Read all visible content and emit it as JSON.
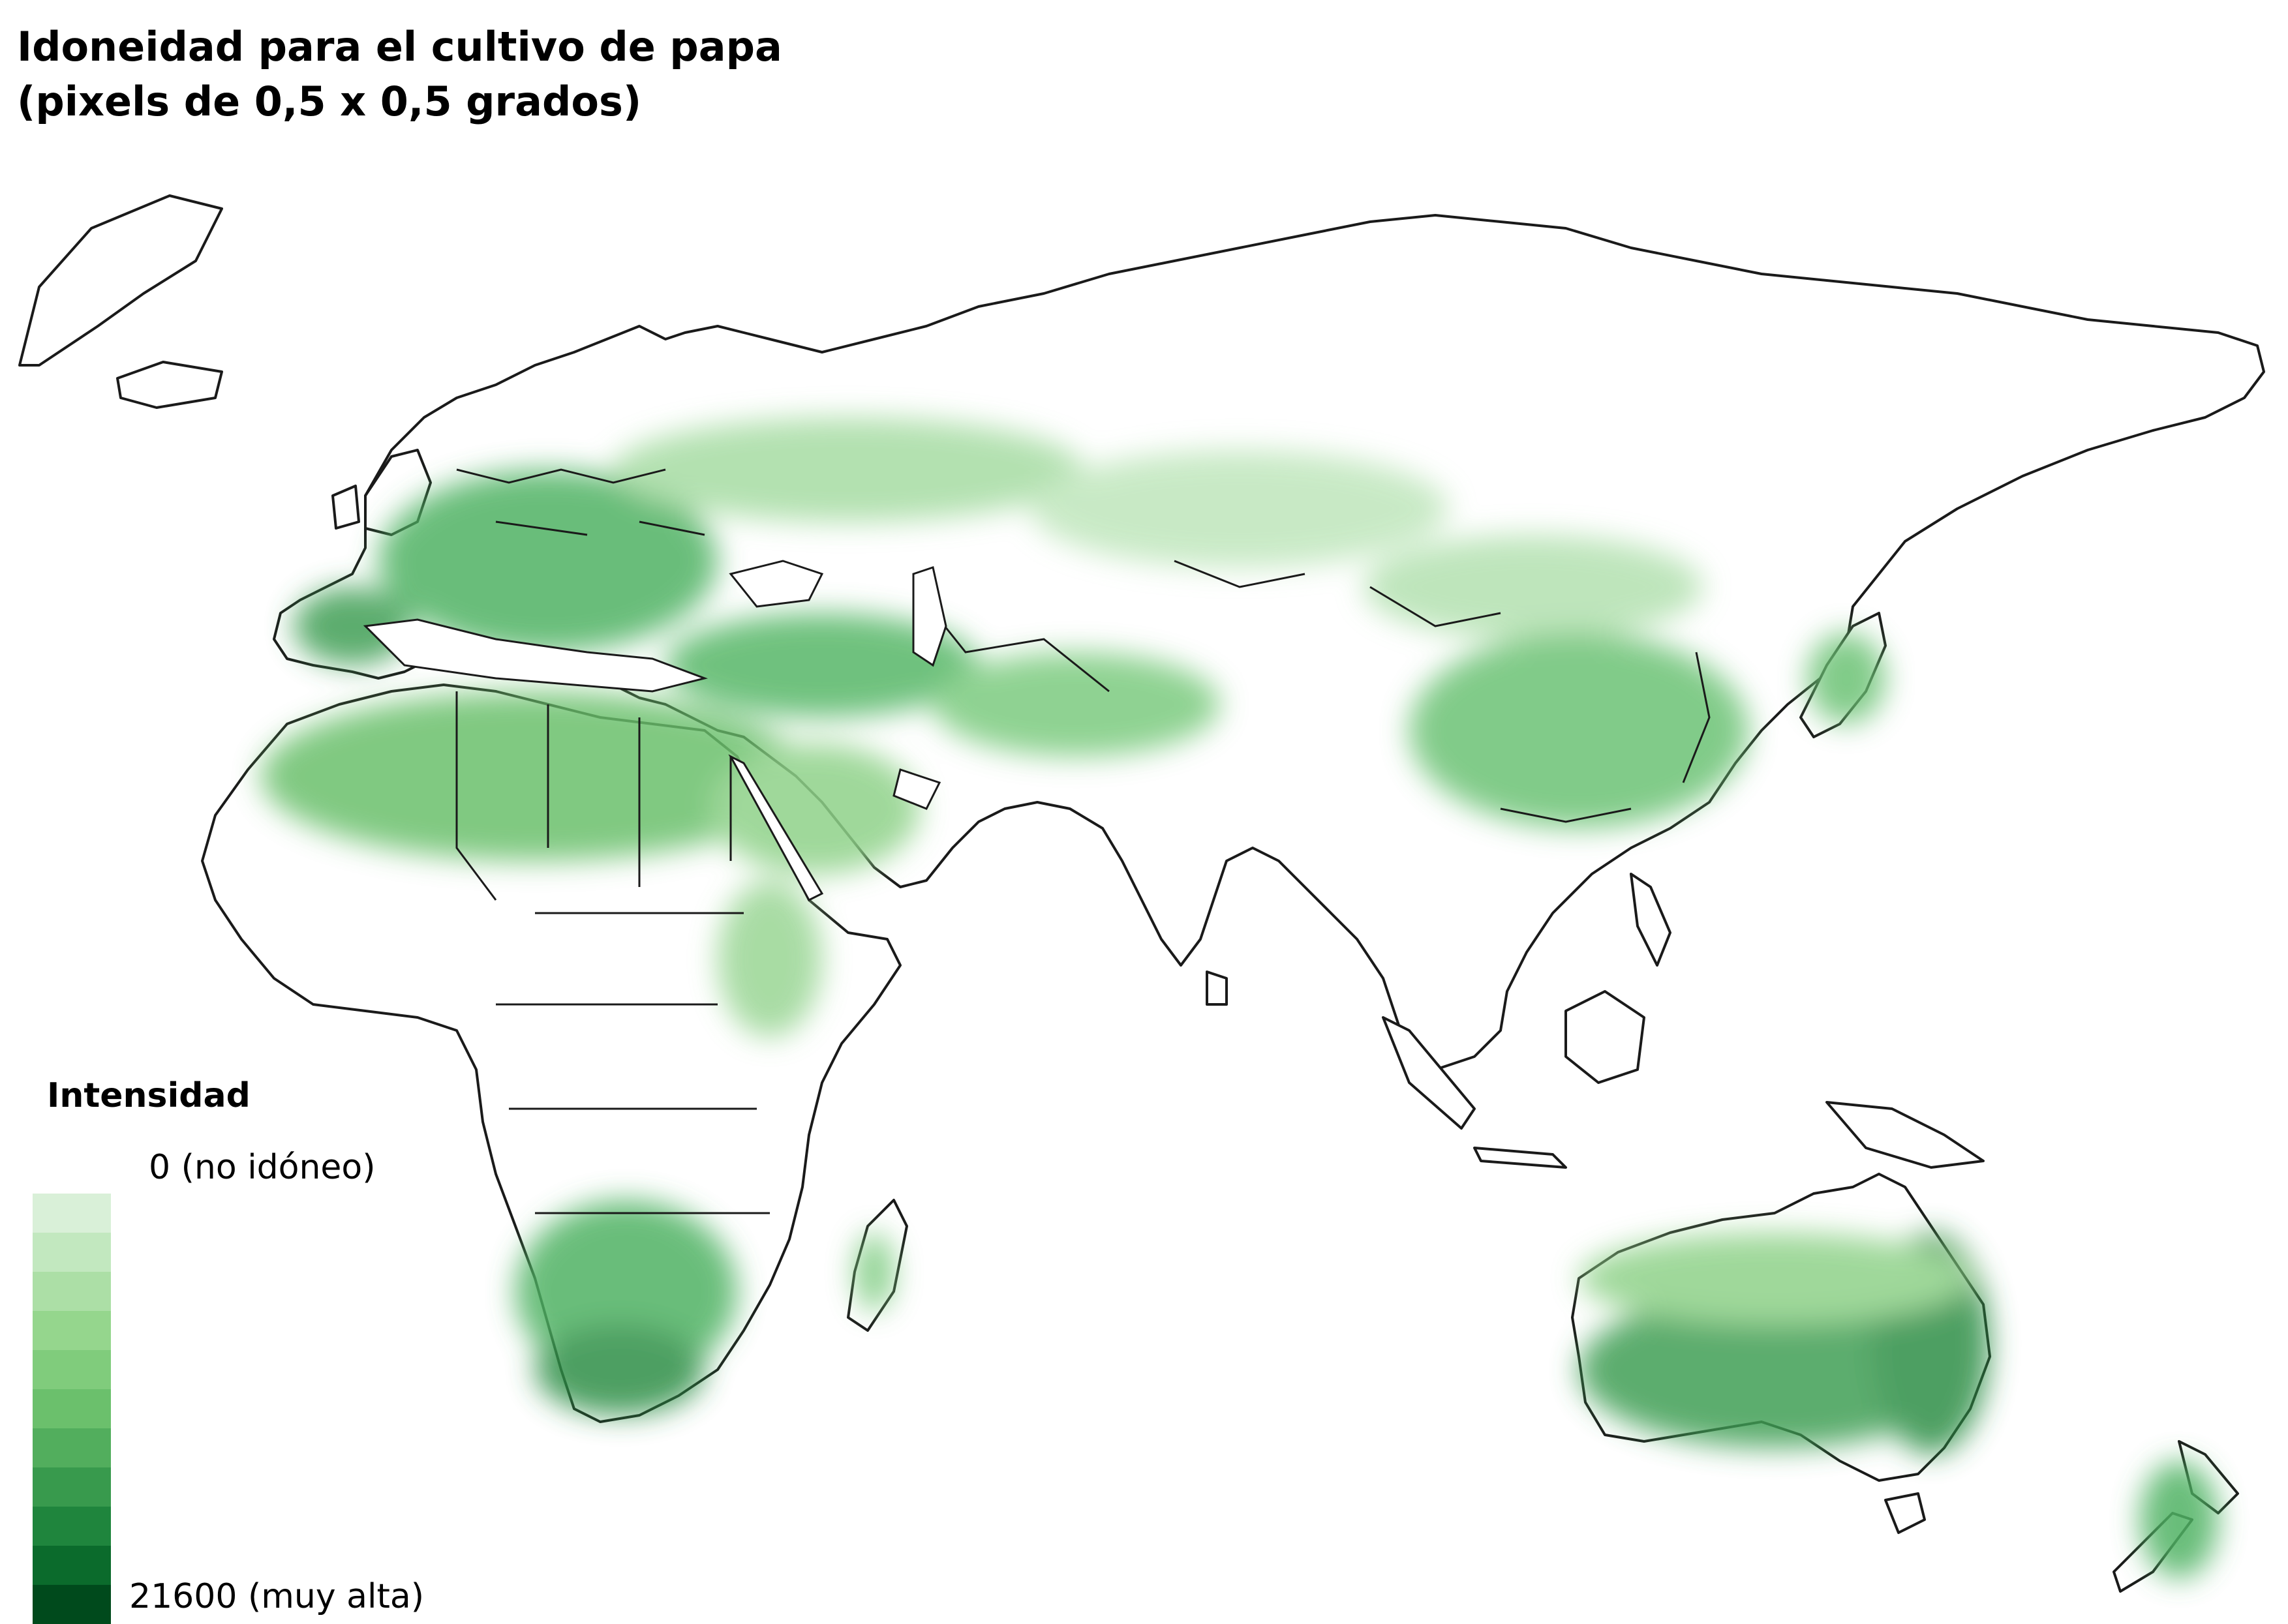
{
  "title": {
    "line1": "Idoneidad para el cultivo de papa",
    "line2": "(pixels de 0,5 x 0,5 grados)"
  },
  "legend": {
    "title": "Intensidad",
    "min_label": "0 (no idóneo)",
    "max_label": "21600 (muy alta)",
    "min_value": 0,
    "max_value": 21600,
    "colors": [
      "#d9f0d8",
      "#c2e8bf",
      "#acdfa6",
      "#95d68d",
      "#80cc7c",
      "#6bc06c",
      "#52ae5d",
      "#389a4d",
      "#1f853d",
      "#0b6b2c",
      "#004a1c"
    ]
  },
  "map": {
    "projection": "Eurasia, Africa and Oceania",
    "land_fill": "#ffffff",
    "border_color": "#1a1a1a"
  }
}
